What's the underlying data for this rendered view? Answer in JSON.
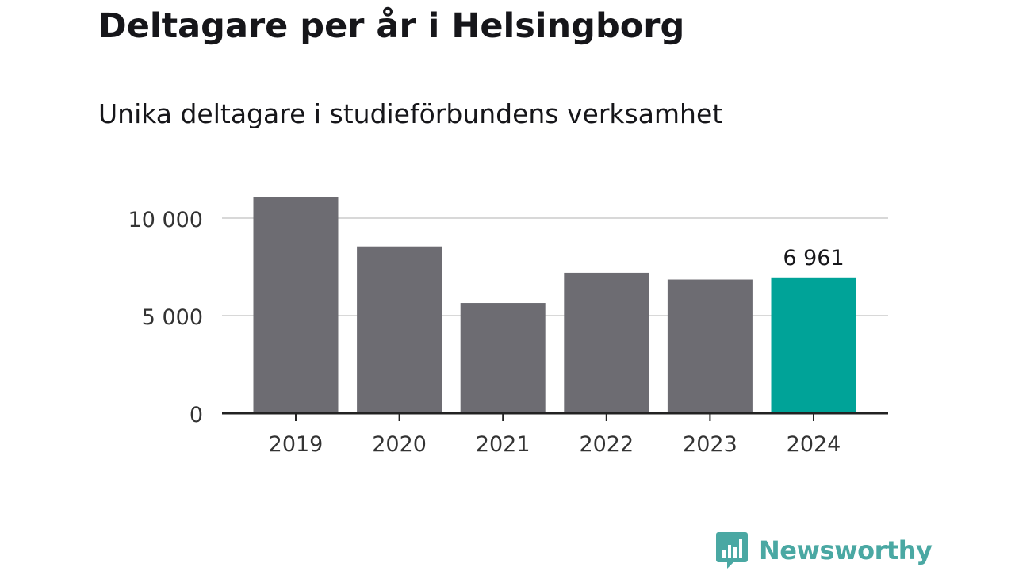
{
  "title": "Deltagare per år i Helsingborg",
  "subtitle": "Unika deltagare i studieförbundens verksamhet",
  "chart_data": {
    "type": "bar",
    "title": "Deltagare per år i Helsingborg",
    "subtitle": "Unika deltagare i studieförbundens verksamhet",
    "categories": [
      "2019",
      "2020",
      "2021",
      "2022",
      "2023",
      "2024"
    ],
    "values": [
      11100,
      8550,
      5650,
      7200,
      6850,
      6961
    ],
    "data_labels": {
      "2024": "6 961"
    },
    "yticks": [
      0,
      5000,
      10000
    ],
    "ytick_labels": [
      "0",
      "5 000",
      "10 000"
    ],
    "ylim": [
      0,
      11100
    ],
    "grid": true,
    "colors": {
      "default_bar": "#6d6c72",
      "highlight_bar": "#00a398",
      "grid": "#d8d8d8",
      "axis": "#222222",
      "text": "#333333"
    },
    "highlight_index": 5
  },
  "brand": {
    "name": "Newsworthy",
    "icon": "bar-chart-speech-bubble-icon",
    "color": "#4aa8a3"
  }
}
